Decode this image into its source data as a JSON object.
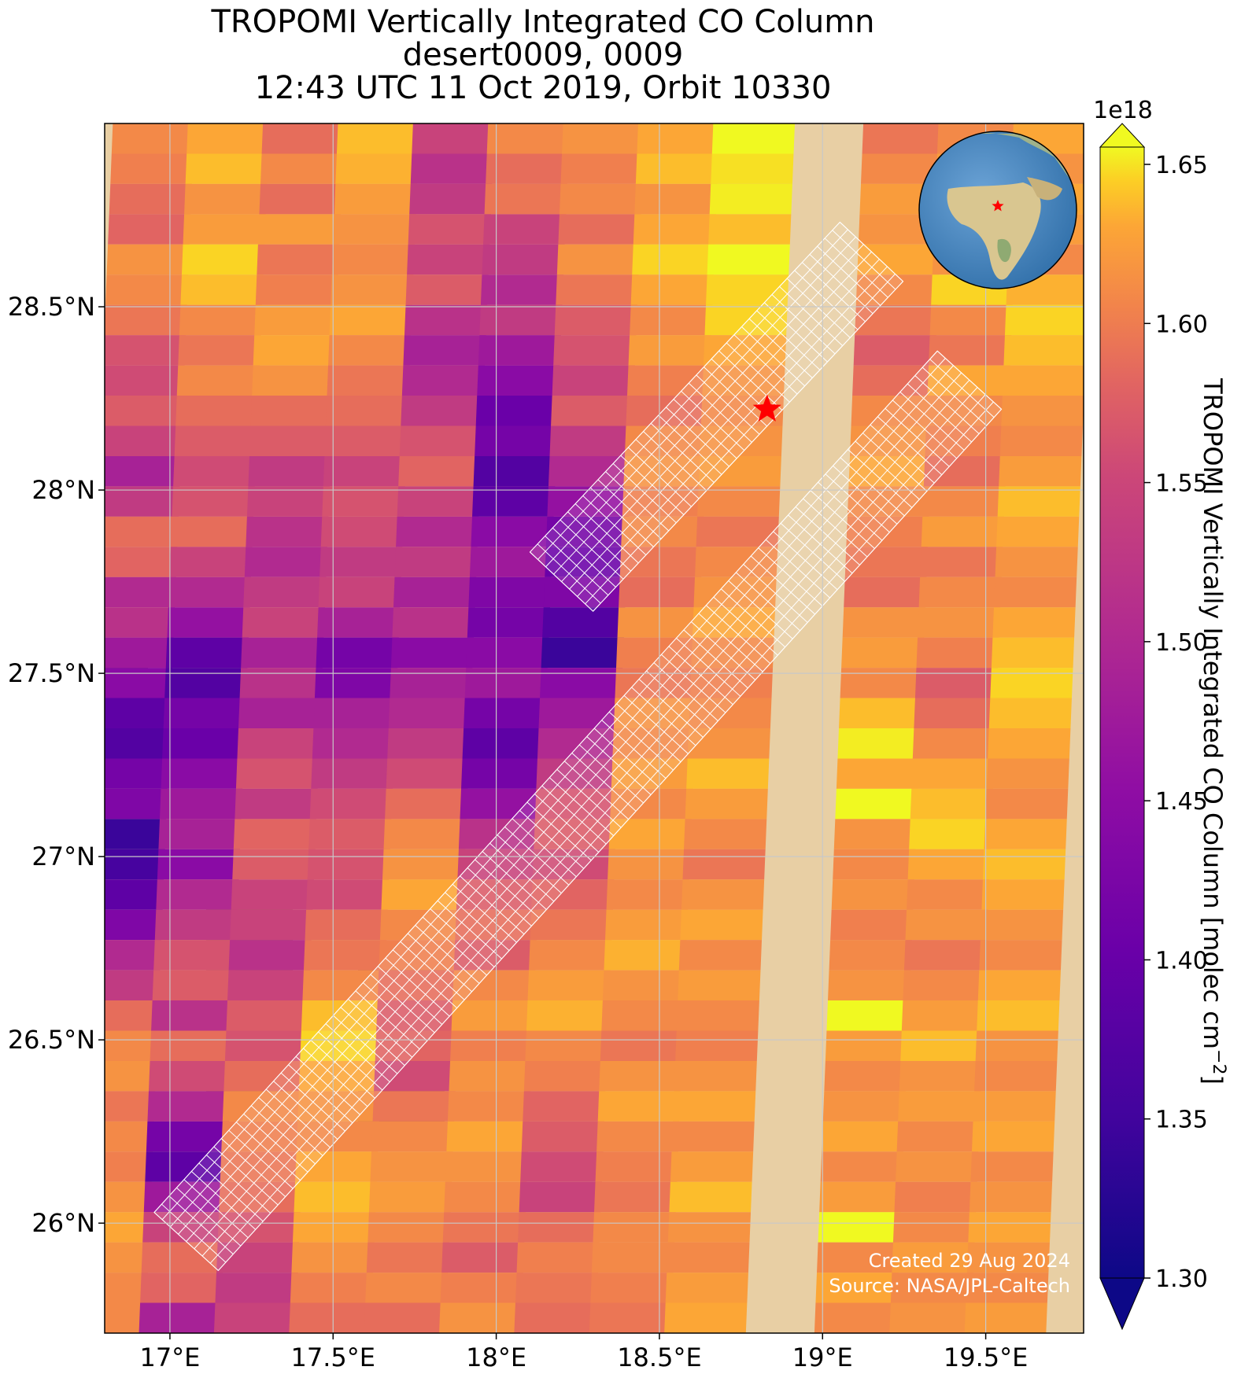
{
  "title": {
    "line1": "TROPOMI Vertically Integrated CO Column",
    "line2": "desert0009, 0009",
    "line3": "12:43 UTC 11 Oct 2019, Orbit 10330"
  },
  "map": {
    "lon_range": [
      16.8,
      19.8
    ],
    "lat_range": [
      25.7,
      29.0
    ],
    "x_ticks": [
      {
        "value": 17.0,
        "label": "17°E"
      },
      {
        "value": 17.5,
        "label": "17.5°E"
      },
      {
        "value": 18.0,
        "label": "18°E"
      },
      {
        "value": 18.5,
        "label": "18.5°E"
      },
      {
        "value": 19.0,
        "label": "19°E"
      },
      {
        "value": 19.5,
        "label": "19.5°E"
      }
    ],
    "y_ticks": [
      {
        "value": 28.5,
        "label": "28.5°N"
      },
      {
        "value": 28.0,
        "label": "28°N"
      },
      {
        "value": 27.5,
        "label": "27.5°N"
      },
      {
        "value": 27.0,
        "label": "27°N"
      },
      {
        "value": 26.5,
        "label": "26.5°N"
      },
      {
        "value": 26.0,
        "label": "26°N"
      }
    ],
    "grid": true,
    "target": {
      "lon": 18.83,
      "lat": 28.22,
      "color": "#ff0000"
    },
    "credit_line1": "Created 29 Aug 2024",
    "credit_line2": "Source: NASA/JPL-Caltech",
    "inset": "globe showing Africa and Europe with red star over Libya"
  },
  "colorbar": {
    "label": "TROPOMI Vertically Integrated CO Column [molec cm",
    "label_sup": "−2",
    "label_end": "]",
    "exponent": "1e18",
    "colormap": "plasma",
    "range": [
      1.3,
      1.65
    ],
    "ticks": [
      "1.30",
      "1.35",
      "1.40",
      "1.45",
      "1.50",
      "1.55",
      "1.60",
      "1.65"
    ]
  },
  "chart_data": {
    "type": "heatmap",
    "colormap": "plasma",
    "value_range": [
      1.3e+18,
      1.65e+18
    ],
    "x_unit": "longitude (°E)",
    "y_unit": "latitude (°N)",
    "swath_columns": [
      {
        "lon_top": 16.95,
        "lon_bottom": 16.8,
        "values": [
          1.55,
          1.54,
          1.52,
          1.51,
          1.56,
          1.55,
          1.53,
          1.49,
          1.48,
          1.5,
          1.47,
          1.43,
          1.46,
          1.52,
          1.51,
          1.44,
          1.45,
          1.42,
          1.4,
          1.36,
          1.35,
          1.38,
          1.39,
          1.33,
          1.34,
          1.36,
          1.39,
          1.44,
          1.46,
          1.52,
          1.55,
          1.56,
          1.53,
          1.55,
          1.54,
          1.56,
          1.58,
          1.56,
          1.55,
          1.55
        ]
      },
      {
        "lon_top": 17.18,
        "lon_bottom": 17.03,
        "values": [
          1.58,
          1.6,
          1.56,
          1.57,
          1.62,
          1.6,
          1.55,
          1.53,
          1.55,
          1.52,
          1.5,
          1.48,
          1.49,
          1.52,
          1.47,
          1.44,
          1.41,
          1.36,
          1.35,
          1.38,
          1.37,
          1.4,
          1.42,
          1.43,
          1.4,
          1.44,
          1.46,
          1.49,
          1.5,
          1.45,
          1.52,
          1.48,
          1.44,
          1.38,
          1.36,
          1.42,
          1.47,
          1.52,
          1.51,
          1.43
        ]
      },
      {
        "lon_top": 17.41,
        "lon_bottom": 17.26,
        "values": [
          1.52,
          1.55,
          1.52,
          1.57,
          1.53,
          1.54,
          1.57,
          1.58,
          1.56,
          1.52,
          1.5,
          1.46,
          1.47,
          1.45,
          1.44,
          1.46,
          1.47,
          1.43,
          1.45,
          1.43,
          1.47,
          1.49,
          1.46,
          1.51,
          1.5,
          1.47,
          1.47,
          1.45,
          1.47,
          1.5,
          1.49,
          1.52,
          1.55,
          1.54,
          1.53,
          1.52,
          1.49,
          1.47,
          1.46,
          1.47
        ]
      },
      {
        "lon_top": 17.64,
        "lon_bottom": 17.49,
        "values": [
          1.6,
          1.59,
          1.57,
          1.56,
          1.55,
          1.56,
          1.58,
          1.55,
          1.53,
          1.52,
          1.5,
          1.47,
          1.49,
          1.48,
          1.46,
          1.47,
          1.43,
          1.38,
          1.39,
          1.43,
          1.44,
          1.46,
          1.48,
          1.5,
          1.49,
          1.48,
          1.52,
          1.53,
          1.55,
          1.6,
          1.62,
          1.58,
          1.56,
          1.55,
          1.58,
          1.6,
          1.58,
          1.56,
          1.54,
          1.52
        ]
      },
      {
        "lon_top": 17.87,
        "lon_bottom": 17.72,
        "values": [
          1.47,
          1.45,
          1.46,
          1.49,
          1.47,
          1.5,
          1.45,
          1.43,
          1.44,
          1.46,
          1.49,
          1.51,
          1.47,
          1.44,
          1.46,
          1.43,
          1.45,
          1.4,
          1.43,
          1.44,
          1.46,
          1.48,
          1.52,
          1.55,
          1.56,
          1.58,
          1.55,
          1.54,
          1.52,
          1.5,
          1.51,
          1.48,
          1.53,
          1.55,
          1.56,
          1.57,
          1.55,
          1.53,
          1.55,
          1.52
        ]
      },
      {
        "lon_top": 18.1,
        "lon_bottom": 17.95,
        "values": [
          1.55,
          1.52,
          1.53,
          1.47,
          1.46,
          1.44,
          1.46,
          1.42,
          1.4,
          1.37,
          1.38,
          1.35,
          1.36,
          1.4,
          1.42,
          1.39,
          1.38,
          1.4,
          1.42,
          1.38,
          1.36,
          1.38,
          1.41,
          1.45,
          1.47,
          1.5,
          1.52,
          1.5,
          1.55,
          1.57,
          1.54,
          1.56,
          1.55,
          1.58,
          1.56,
          1.55,
          1.53,
          1.5,
          1.54,
          1.56
        ]
      },
      {
        "lon_top": 18.33,
        "lon_bottom": 18.18,
        "values": [
          1.56,
          1.54,
          1.55,
          1.52,
          1.56,
          1.53,
          1.5,
          1.49,
          1.47,
          1.5,
          1.46,
          1.44,
          1.41,
          1.38,
          1.37,
          1.39,
          1.35,
          1.33,
          1.4,
          1.42,
          1.44,
          1.46,
          1.49,
          1.5,
          1.48,
          1.51,
          1.53,
          1.55,
          1.57,
          1.59,
          1.55,
          1.54,
          1.51,
          1.5,
          1.48,
          1.47,
          1.52,
          1.54,
          1.53,
          1.52
        ]
      },
      {
        "lon_top": 18.56,
        "lon_bottom": 18.41,
        "values": [
          1.58,
          1.6,
          1.56,
          1.58,
          1.62,
          1.58,
          1.55,
          1.57,
          1.54,
          1.52,
          1.55,
          1.56,
          1.54,
          1.55,
          1.53,
          1.52,
          1.56,
          1.54,
          1.53,
          1.56,
          1.55,
          1.57,
          1.55,
          1.58,
          1.56,
          1.55,
          1.57,
          1.59,
          1.56,
          1.55,
          1.53,
          1.56,
          1.58,
          1.55,
          1.54,
          1.53,
          1.55,
          1.55,
          1.54,
          1.53
        ]
      },
      {
        "lon_top": 18.79,
        "lon_bottom": 18.64,
        "values": [
          1.65,
          1.63,
          1.64,
          1.6,
          1.66,
          1.62,
          1.62,
          1.58,
          1.56,
          1.55,
          1.56,
          1.57,
          1.55,
          1.53,
          1.55,
          1.56,
          1.58,
          1.55,
          1.54,
          1.55,
          1.56,
          1.6,
          1.57,
          1.55,
          1.53,
          1.56,
          1.58,
          1.55,
          1.57,
          1.55,
          1.54,
          1.56,
          1.58,
          1.55,
          1.57,
          1.6,
          1.56,
          1.55,
          1.57,
          1.58
        ]
      },
      {
        "lon_top": 19.25,
        "lon_bottom": 19.1,
        "values": [
          1.53,
          1.55,
          1.57,
          1.56,
          1.58,
          1.55,
          1.53,
          1.5,
          1.52,
          1.55,
          1.56,
          1.58,
          1.55,
          1.54,
          1.53,
          1.52,
          1.56,
          1.57,
          1.55,
          1.6,
          1.64,
          1.58,
          1.65,
          1.56,
          1.55,
          1.56,
          1.54,
          1.55,
          1.56,
          1.65,
          1.57,
          1.55,
          1.56,
          1.58,
          1.55,
          1.57,
          1.65,
          1.55,
          1.58,
          1.55
        ]
      },
      {
        "lon_top": 19.48,
        "lon_bottom": 19.33,
        "values": [
          1.55,
          1.57,
          1.6,
          1.58,
          1.56,
          1.62,
          1.55,
          1.53,
          1.58,
          1.55,
          1.54,
          1.52,
          1.55,
          1.57,
          1.53,
          1.55,
          1.56,
          1.54,
          1.5,
          1.52,
          1.55,
          1.58,
          1.6,
          1.62,
          1.58,
          1.55,
          1.56,
          1.53,
          1.55,
          1.57,
          1.6,
          1.56,
          1.57,
          1.55,
          1.56,
          1.54,
          1.55,
          1.57,
          1.55,
          1.56
        ]
      },
      {
        "lon_top": 19.71,
        "lon_bottom": 19.56,
        "values": [
          1.58,
          1.56,
          1.58,
          1.57,
          1.55,
          1.59,
          1.62,
          1.6,
          1.58,
          1.56,
          1.55,
          1.57,
          1.6,
          1.58,
          1.56,
          1.55,
          1.58,
          1.6,
          1.62,
          1.6,
          1.58,
          1.56,
          1.55,
          1.58,
          1.6,
          1.58,
          1.56,
          1.55,
          1.58,
          1.6,
          1.56,
          1.55,
          1.57,
          1.58,
          1.55,
          1.56,
          1.58,
          1.56,
          1.55,
          1.57
        ]
      }
    ],
    "overpass_tracks": [
      {
        "lon_start": 17.05,
        "lat_start": 25.95,
        "lon_end": 19.45,
        "lat_end": 28.3
      },
      {
        "lon_start": 18.2,
        "lat_start": 27.75,
        "lon_end": 19.15,
        "lat_end": 28.65
      }
    ]
  }
}
